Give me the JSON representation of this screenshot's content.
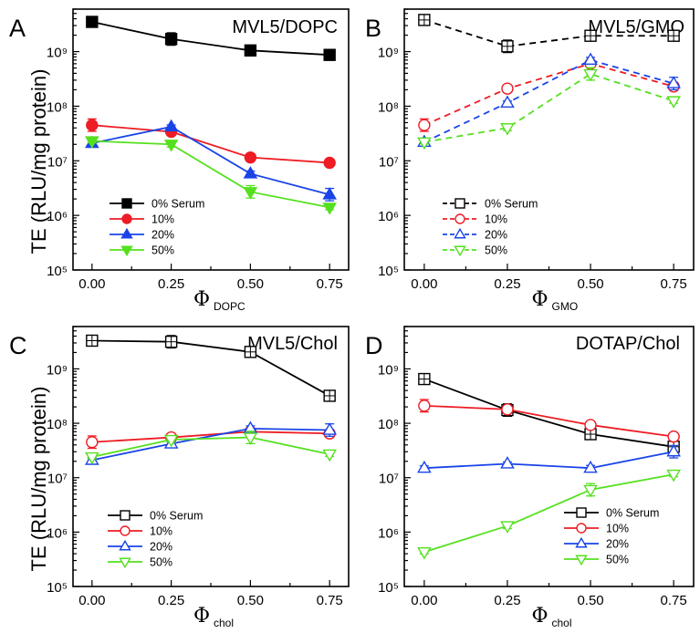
{
  "y_axis_label": "TE (RLU/mg protein)",
  "chart_data": [
    {
      "type": "line",
      "letter": "A",
      "title": "MVL5/DOPC",
      "xlabel_symbol": "Φ",
      "xlabel_sub": "DOPC",
      "x": [
        0.0,
        0.25,
        0.5,
        0.75
      ],
      "x_tick_labels": [
        "0.00",
        "0.25",
        "0.50",
        "0.75"
      ],
      "xlim": [
        -0.06,
        0.81
      ],
      "y_scale": "log",
      "ylim": [
        100000,
        6000000000
      ],
      "y_tick_labels": [
        "10⁵",
        "10⁶",
        "10⁷",
        "10⁸",
        "10⁹"
      ],
      "line_style": "solid",
      "marker_fill": "filled",
      "legend": "lower-left",
      "series": [
        {
          "name": "0% Serum",
          "color": "#000000",
          "marker": "square",
          "values": [
            3500000000,
            1700000000,
            1050000000,
            870000000
          ]
        },
        {
          "name": "10%",
          "color": "#ee1c24",
          "marker": "circle",
          "values": [
            45000000,
            34000000,
            11500000,
            9200000
          ]
        },
        {
          "name": "20%",
          "color": "#1a44e8",
          "marker": "triangle-up",
          "values": [
            21000000,
            42000000,
            5800000,
            2400000
          ]
        },
        {
          "name": "50%",
          "color": "#55e01f",
          "marker": "triangle-down",
          "values": [
            23000000,
            20000000,
            2700000,
            1400000
          ]
        }
      ]
    },
    {
      "type": "line",
      "letter": "B",
      "title": "MVL5/GMO",
      "xlabel_symbol": "Φ",
      "xlabel_sub": "GMO",
      "x": [
        0.0,
        0.25,
        0.5,
        0.75
      ],
      "x_tick_labels": [
        "0.00",
        "0.25",
        "0.50",
        "0.75"
      ],
      "xlim": [
        -0.06,
        0.81
      ],
      "y_scale": "log",
      "ylim": [
        100000,
        6000000000
      ],
      "y_tick_labels": [
        "10⁵",
        "10⁶",
        "10⁷",
        "10⁸",
        "10⁹"
      ],
      "line_style": "dashed",
      "marker_fill": "open",
      "legend": "lower-left",
      "series": [
        {
          "name": "0% Serum",
          "color": "#000000",
          "marker": "square",
          "values": [
            3800000000,
            1250000000,
            1950000000,
            1950000000
          ]
        },
        {
          "name": "10%",
          "color": "#ee1c24",
          "marker": "circle",
          "values": [
            45000000,
            210000000,
            600000000,
            230000000
          ]
        },
        {
          "name": "20%",
          "color": "#1a44e8",
          "marker": "triangle-up",
          "values": [
            22000000,
            115000000,
            700000000,
            260000000
          ]
        },
        {
          "name": "50%",
          "color": "#55e01f",
          "marker": "triangle-down",
          "values": [
            22000000,
            40000000,
            390000000,
            125000000
          ]
        }
      ]
    },
    {
      "type": "line",
      "letter": "C",
      "title": "MVL5/Chol",
      "xlabel_symbol": "Φ",
      "xlabel_sub": "chol",
      "x": [
        0.0,
        0.25,
        0.5,
        0.75
      ],
      "x_tick_labels": [
        "0.00",
        "0.25",
        "0.50",
        "0.75"
      ],
      "xlim": [
        -0.06,
        0.81
      ],
      "y_scale": "log",
      "ylim": [
        100000,
        6000000000
      ],
      "y_tick_labels": [
        "10⁵",
        "10⁶",
        "10⁷",
        "10⁸",
        "10⁹"
      ],
      "line_style": "solid",
      "marker_fill": "open",
      "legend": "lower-left",
      "series": [
        {
          "name": "0% Serum",
          "color": "#000000",
          "marker": "square",
          "values": [
            3300000000,
            3150000000,
            2050000000,
            320000000
          ]
        },
        {
          "name": "10%",
          "color": "#ee1c24",
          "marker": "circle",
          "values": [
            45000000,
            55000000,
            70000000,
            65000000
          ]
        },
        {
          "name": "20%",
          "color": "#1a44e8",
          "marker": "triangle-up",
          "values": [
            21000000,
            42000000,
            80000000,
            75000000
          ]
        },
        {
          "name": "50%",
          "color": "#55e01f",
          "marker": "triangle-down",
          "values": [
            24000000,
            50000000,
            55000000,
            27000000
          ]
        }
      ]
    },
    {
      "type": "line",
      "letter": "D",
      "title": "DOTAP/Chol",
      "xlabel_symbol": "Φ",
      "xlabel_sub": "chol",
      "x": [
        0.0,
        0.25,
        0.5,
        0.75
      ],
      "x_tick_labels": [
        "0.00",
        "0.25",
        "0.50",
        "0.75"
      ],
      "xlim": [
        -0.06,
        0.81
      ],
      "y_scale": "log",
      "ylim": [
        100000,
        6000000000
      ],
      "y_tick_labels": [
        "10⁵",
        "10⁶",
        "10⁷",
        "10⁸",
        "10⁹"
      ],
      "line_style": "solid",
      "marker_fill": "open",
      "legend": "lower-right",
      "series": [
        {
          "name": "0% Serum",
          "color": "#000000",
          "marker": "square",
          "values": [
            650000000,
            175000000,
            63000000,
            37000000
          ]
        },
        {
          "name": "10%",
          "color": "#ee1c24",
          "marker": "circle",
          "values": [
            210000000,
            180000000,
            93000000,
            57000000
          ]
        },
        {
          "name": "20%",
          "color": "#1a44e8",
          "marker": "triangle-up",
          "values": [
            15000000,
            18000000,
            15000000,
            30000000
          ]
        },
        {
          "name": "50%",
          "color": "#55e01f",
          "marker": "triangle-down",
          "values": [
            430000,
            1300000,
            6000000,
            11500000
          ]
        }
      ]
    }
  ]
}
